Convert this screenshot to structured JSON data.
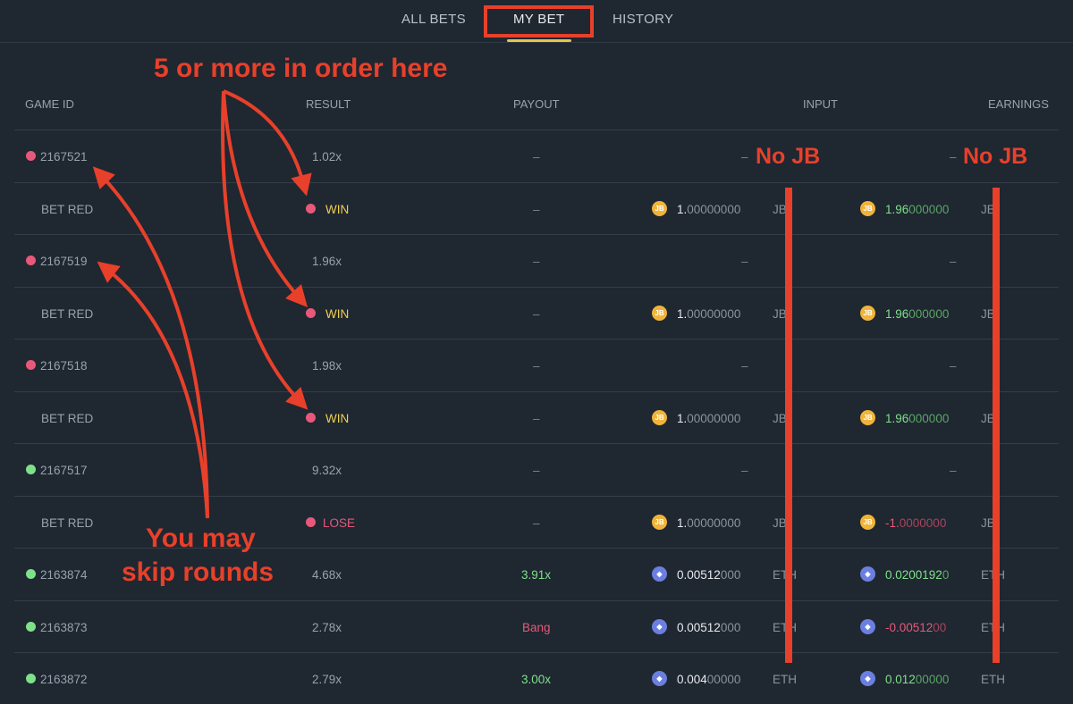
{
  "tabs": [
    "ALL BETS",
    "MY BET",
    "HISTORY"
  ],
  "active_tab": "MY BET",
  "columns": {
    "game_id": "GAME ID",
    "result": "RESULT",
    "payout": "PAYOUT",
    "input": "INPUT",
    "earnings": "EARNINGS"
  },
  "rows": [
    {
      "type": "game",
      "dot": "#e8587a",
      "id": "2167521",
      "result": "1.02x",
      "payout": "–",
      "input": "–",
      "earnings": "–"
    },
    {
      "type": "bet",
      "label": "BET RED",
      "dot": "#e8587a",
      "result": "WIN",
      "payout": "–",
      "coin": "JB",
      "in_main": "1.",
      "in_dim": "00000000",
      "cur": "JB",
      "out_main": "1.96",
      "out_dim": "000000",
      "out_tone": "g"
    },
    {
      "type": "game",
      "dot": "#e8587a",
      "id": "2167519",
      "result": "1.96x",
      "payout": "–",
      "input": "–",
      "earnings": "–"
    },
    {
      "type": "bet",
      "label": "BET RED",
      "dot": "#e8587a",
      "result": "WIN",
      "payout": "–",
      "coin": "JB",
      "in_main": "1.",
      "in_dim": "00000000",
      "cur": "JB",
      "out_main": "1.96",
      "out_dim": "000000",
      "out_tone": "g"
    },
    {
      "type": "game",
      "dot": "#e8587a",
      "id": "2167518",
      "result": "1.98x",
      "payout": "–",
      "input": "–",
      "earnings": "–"
    },
    {
      "type": "bet",
      "label": "BET RED",
      "dot": "#e8587a",
      "result": "WIN",
      "payout": "–",
      "coin": "JB",
      "in_main": "1.",
      "in_dim": "00000000",
      "cur": "JB",
      "out_main": "1.96",
      "out_dim": "000000",
      "out_tone": "g"
    },
    {
      "type": "game",
      "dot": "#7fe08a",
      "id": "2167517",
      "result": "9.32x",
      "payout": "–",
      "input": "–",
      "earnings": "–"
    },
    {
      "type": "bet",
      "label": "BET RED",
      "dot": "#e8587a",
      "result": "LOSE",
      "payout": "–",
      "coin": "JB",
      "in_main": "1.",
      "in_dim": "00000000",
      "cur": "JB",
      "out_main": "-1.",
      "out_dim": "0000000",
      "out_tone": "r"
    },
    {
      "type": "full",
      "dot": "#7fe08a",
      "id": "2163874",
      "result": "4.68x",
      "payout": "3.91x",
      "payout_tone": "g",
      "coin": "ETH",
      "in_main": "0.00512",
      "in_dim": "000",
      "cur": "ETH",
      "out_main": "0.0200192",
      "out_dim": "0",
      "out_tone": "g"
    },
    {
      "type": "full",
      "dot": "#7fe08a",
      "id": "2163873",
      "result": "2.78x",
      "payout": "Bang",
      "payout_tone": "r",
      "coin": "ETH",
      "in_main": "0.00512",
      "in_dim": "000",
      "cur": "ETH",
      "out_main": "-0.00512",
      "out_dim": "00",
      "out_tone": "r"
    },
    {
      "type": "full",
      "dot": "#7fe08a",
      "id": "2163872",
      "result": "2.79x",
      "payout": "3.00x",
      "payout_tone": "g",
      "coin": "ETH",
      "in_main": "0.004",
      "in_dim": "00000",
      "cur": "ETH",
      "out_main": "0.012",
      "out_dim": "00000",
      "out_tone": "g"
    }
  ],
  "annotations": {
    "top": "5 or more in order here",
    "no_jb_1": "No JB",
    "no_jb_2": "No JB",
    "skip_1": "You may",
    "skip_2": "skip rounds"
  },
  "colors": {
    "annotation": "#e8402a",
    "tab_underline": "#e8c34a",
    "win": "#f0d050",
    "lose": "#e8587a"
  }
}
